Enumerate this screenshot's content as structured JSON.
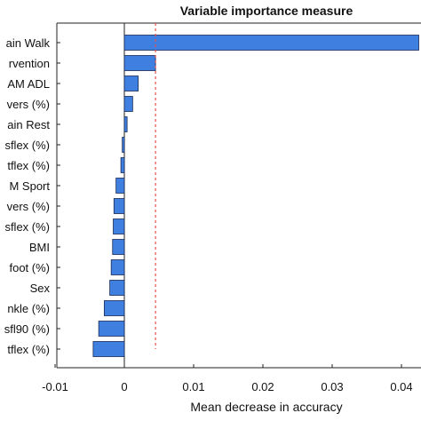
{
  "chart_data": {
    "type": "bar",
    "orientation": "horizontal",
    "title": "Variable importance measure",
    "xlabel": "Mean decrease in accuracy",
    "ylabel": "",
    "xlim": [
      -0.01,
      0.0425
    ],
    "xticks": [
      -0.01,
      0,
      0.01,
      0.02,
      0.03,
      0.04
    ],
    "xtick_labels": [
      "-0.01",
      "0",
      "0.01",
      "0.02",
      "0.03",
      "0.04"
    ],
    "categories": [
      "ain Walk",
      "rvention",
      "AM ADL",
      "vers (%)",
      "ain Rest",
      "sflex (%)",
      "tflex (%)",
      "M Sport",
      "vers (%)",
      "sflex (%)",
      "BMI",
      "foot (%)",
      "Sex",
      "nkle (%)",
      "sfl90 (%)",
      "tflex (%)"
    ],
    "values": [
      0.0425,
      0.0045,
      0.002,
      0.0012,
      0.0004,
      -0.0003,
      -0.0005,
      -0.0012,
      -0.0015,
      -0.0016,
      -0.0017,
      -0.0019,
      -0.0021,
      -0.0029,
      -0.0037,
      -0.0045
    ],
    "reference_line": {
      "x": 0.0045,
      "style": "dashed",
      "color": "#e8504a"
    },
    "bar_color": "#3f7fe0",
    "grid": false
  }
}
